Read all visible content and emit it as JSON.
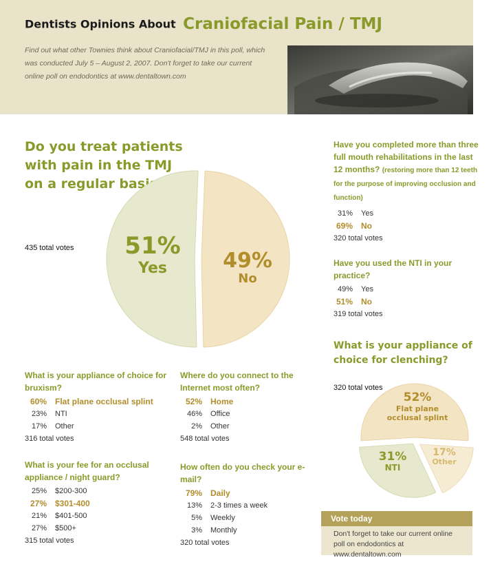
{
  "header": {
    "title_prefix": "Dentists Opinions About",
    "title_main": "Craniofacial Pain / TMJ",
    "intro": "Find out what other Townies think about Craniofacial/TMJ in this poll, which was conducted July 5 – August 2, 2007. Don't forget to take our current online poll on endodontics at www.dentaltown.com"
  },
  "colors": {
    "accent_green": "#8a9a2a",
    "accent_gold": "#b28d2c",
    "pie_yes": "#e6e9cd",
    "pie_no": "#f3e4c4"
  },
  "chart_data": [
    {
      "type": "pie",
      "title": "Do you treat patients with pain in the TMJ on a regular basis?",
      "total_votes": "435 total votes",
      "slices": [
        {
          "label": "Yes",
          "value": 51,
          "display": "51%"
        },
        {
          "label": "No",
          "value": 49,
          "display": "49%"
        }
      ]
    },
    {
      "type": "pie",
      "title": "What is your appliance of choice for clenching?",
      "total_votes": "320 total votes",
      "slices": [
        {
          "label": "Flat plane occlusal splint",
          "value": 52,
          "display": "52%"
        },
        {
          "label": "NTI",
          "value": 31,
          "display": "31%"
        },
        {
          "label": "Other",
          "value": 17,
          "display": "17%"
        }
      ]
    }
  ],
  "polls": {
    "rehab": {
      "question": "Have you completed more than three full mouth rehabilitations in the last 12 months?",
      "note": "(restoring more than 12 teeth for the purpose of improving occlusion and function)",
      "answers": [
        {
          "pct": "31%",
          "label": "Yes"
        },
        {
          "pct": "69%",
          "label": "No"
        }
      ],
      "total": "320 total votes"
    },
    "nti": {
      "question": "Have you used the NTI in your practice?",
      "answers": [
        {
          "pct": "49%",
          "label": "Yes"
        },
        {
          "pct": "51%",
          "label": "No"
        }
      ],
      "total": "319 total votes"
    },
    "bruxism": {
      "question": "What is your appliance of choice for bruxism?",
      "answers": [
        {
          "pct": "60%",
          "label": "Flat plane occlusal splint"
        },
        {
          "pct": "23%",
          "label": "NTI"
        },
        {
          "pct": "17%",
          "label": "Other"
        }
      ],
      "total": "316 total votes"
    },
    "fee": {
      "question": "What is your fee for an occlusal appliance / night guard?",
      "answers": [
        {
          "pct": "25%",
          "label": "$200-300"
        },
        {
          "pct": "27%",
          "label": "$301-400"
        },
        {
          "pct": "21%",
          "label": "$401-500"
        },
        {
          "pct": "27%",
          "label": "$500+"
        }
      ],
      "total": "315 total votes"
    },
    "internet": {
      "question": "Where do you connect to the Internet most often?",
      "answers": [
        {
          "pct": "52%",
          "label": "Home"
        },
        {
          "pct": "46%",
          "label": "Office"
        },
        {
          "pct": "2%",
          "label": "Other"
        }
      ],
      "total": "548 total votes"
    },
    "email": {
      "question": "How often do you check your e-mail?",
      "answers": [
        {
          "pct": "79%",
          "label": "Daily"
        },
        {
          "pct": "13%",
          "label": "2-3 times a week"
        },
        {
          "pct": "5%",
          "label": "Weekly"
        },
        {
          "pct": "3%",
          "label": "Monthly"
        }
      ],
      "total": "320 total votes"
    }
  },
  "vote_today": {
    "title": "Vote today",
    "text": "Don't forget to take our current online poll on endodontics at www.dentaltown.com"
  }
}
